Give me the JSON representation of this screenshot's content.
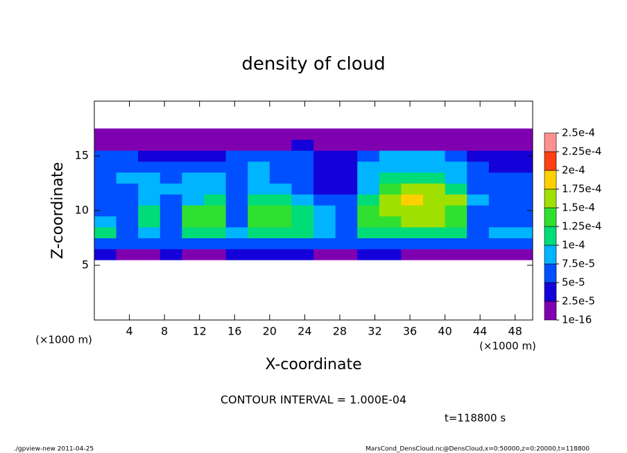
{
  "chart_data": {
    "type": "contour",
    "title": "density of cloud",
    "xlabel": "X-coordinate",
    "ylabel": "Z-coordinate",
    "xunit": "(×1000 m)",
    "yunit": "(×1000 m)",
    "contour_note": "CONTOUR INTERVAL = 1.000E-04",
    "time_note": "t=118800 s",
    "footer_left": "./gpview-new  2011-04-25",
    "footer_right": "MarsCond_DensCloud.nc@DensCloud,x=0:50000,z=0:20000,t=118800",
    "xlim": [
      0,
      50
    ],
    "ylim": [
      0,
      20
    ],
    "xticks": [
      4,
      8,
      12,
      16,
      20,
      24,
      28,
      32,
      36,
      40,
      44,
      48
    ],
    "yticks": [
      5,
      10,
      15
    ],
    "x": [
      1.25,
      3.75,
      6.25,
      8.75,
      11.25,
      13.75,
      16.25,
      18.75,
      21.25,
      23.75,
      26.25,
      28.75,
      31.25,
      33.75,
      36.25,
      38.75,
      41.25,
      43.75,
      46.25,
      48.75
    ],
    "z": [
      6,
      7,
      8,
      9,
      10,
      11,
      12,
      13,
      14,
      15,
      16,
      17
    ],
    "values": [
      [
        3e-05,
        2e-05,
        2e-05,
        3e-05,
        2e-05,
        2e-05,
        3e-05,
        3e-05,
        3e-05,
        3e-05,
        2e-05,
        2e-05,
        3e-05,
        3e-05,
        2e-05,
        2e-05,
        2e-05,
        2e-05,
        2e-05,
        2e-05
      ],
      [
        7e-05,
        6e-05,
        7e-05,
        6e-05,
        6e-05,
        7e-05,
        7e-05,
        7e-05,
        7e-05,
        7e-05,
        7e-05,
        6e-05,
        7e-05,
        7e-05,
        7e-05,
        7e-05,
        7e-05,
        6e-05,
        6e-05,
        6e-05
      ],
      [
        0.000105,
        7e-05,
        8e-05,
        7e-05,
        0.00011,
        0.00011,
        8e-05,
        0.000105,
        0.00011,
        0.000105,
        8e-05,
        7e-05,
        0.00011,
        0.00012,
        0.00012,
        0.00011,
        0.000105,
        7e-05,
        8e-05,
        9e-05
      ],
      [
        8e-05,
        6e-05,
        0.00011,
        7e-05,
        0.00013,
        0.00013,
        7e-05,
        0.000125,
        0.00013,
        0.00012,
        9e-05,
        6e-05,
        0.000125,
        0.00014,
        0.00015,
        0.00015,
        0.00013,
        6e-05,
        7e-05,
        7e-05
      ],
      [
        6e-05,
        5e-05,
        0.000105,
        6e-05,
        0.00013,
        0.00013,
        6e-05,
        0.00013,
        0.00014,
        0.00012,
        8e-05,
        6e-05,
        0.00013,
        0.00016,
        0.00017,
        0.00016,
        0.00014,
        7e-05,
        6e-05,
        6e-05
      ],
      [
        5e-05,
        6e-05,
        8e-05,
        7e-05,
        9e-05,
        0.0001,
        7e-05,
        0.000105,
        0.00011,
        9e-05,
        5e-05,
        6e-05,
        0.00011,
        0.00015,
        0.00018,
        0.00017,
        0.00015,
        8e-05,
        7e-05,
        6e-05
      ],
      [
        6e-05,
        6e-05,
        8e-05,
        8e-05,
        8e-05,
        8e-05,
        7e-05,
        8e-05,
        8e-05,
        6e-05,
        4e-05,
        4e-05,
        9e-05,
        0.00013,
        0.00016,
        0.00016,
        0.00012,
        7e-05,
        6e-05,
        6e-05
      ],
      [
        6e-05,
        8e-05,
        8e-05,
        7e-05,
        8e-05,
        8e-05,
        7e-05,
        8e-05,
        7e-05,
        5e-05,
        3e-05,
        4e-05,
        9e-05,
        0.000105,
        0.00011,
        0.00011,
        9e-05,
        6e-05,
        5e-05,
        5e-05
      ],
      [
        6e-05,
        7e-05,
        6e-05,
        5e-05,
        6e-05,
        6e-05,
        7e-05,
        8e-05,
        7e-05,
        6e-05,
        3e-05,
        4e-05,
        8e-05,
        9e-05,
        9e-05,
        9e-05,
        8e-05,
        5e-05,
        4e-05,
        4e-05
      ],
      [
        6e-05,
        5e-05,
        3e-05,
        3e-05,
        3e-05,
        4e-05,
        5e-05,
        6e-05,
        6e-05,
        5e-05,
        3e-05,
        3e-05,
        6e-05,
        8e-05,
        8e-05,
        8e-05,
        7e-05,
        4e-05,
        3e-05,
        3e-05
      ],
      [
        2e-05,
        2e-05,
        2e-05,
        2e-05,
        2e-05,
        2e-05,
        2e-05,
        2e-05,
        2e-05,
        3e-05,
        2e-05,
        2e-05,
        2e-05,
        2e-05,
        2e-05,
        2e-05,
        2e-05,
        2e-05,
        2e-05,
        2e-05
      ],
      [
        1e-05,
        1e-05,
        1e-05,
        1e-05,
        1e-05,
        1e-05,
        1e-05,
        1e-05,
        1e-05,
        1e-05,
        1e-05,
        1e-05,
        1e-05,
        1e-05,
        1e-05,
        1e-05,
        1e-05,
        1e-05,
        1e-05,
        1e-05
      ]
    ],
    "levels": [
      {
        "value": 1e-16,
        "label": "1e-16"
      },
      {
        "value": 2.5e-05,
        "label": "2.5e-5"
      },
      {
        "value": 5e-05,
        "label": "5e-5"
      },
      {
        "value": 7.5e-05,
        "label": "7.5e-5"
      },
      {
        "value": 0.0001,
        "label": "1e-4"
      },
      {
        "value": 0.000125,
        "label": "1.25e-4"
      },
      {
        "value": 0.00015,
        "label": "1.5e-4"
      },
      {
        "value": 0.000175,
        "label": "1.75e-4"
      },
      {
        "value": 0.0002,
        "label": "2e-4"
      },
      {
        "value": 0.000225,
        "label": "2.25e-4"
      },
      {
        "value": 0.00025,
        "label": "2.5e-4"
      }
    ],
    "colors": [
      "#7f00b0",
      "#1400d8",
      "#0050ff",
      "#00b4ff",
      "#00dc78",
      "#30e030",
      "#a0e000",
      "#ffd000",
      "#ff4010",
      "#ff9090"
    ]
  }
}
